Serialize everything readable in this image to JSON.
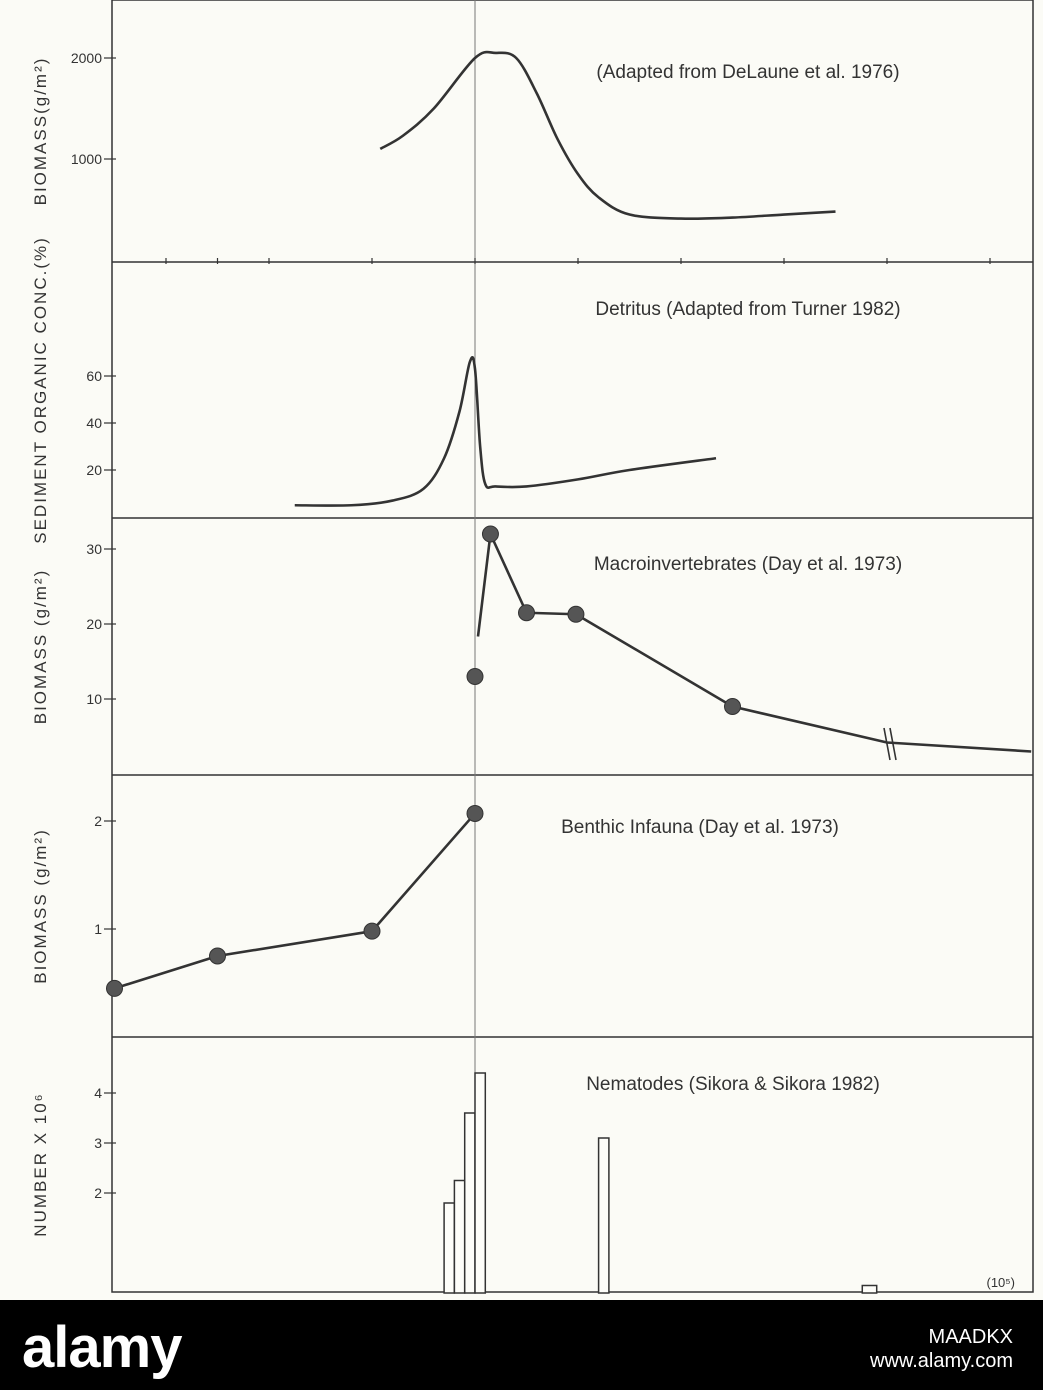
{
  "chart_data": [
    {
      "type": "line",
      "title": "(Adapted from DeLaune et al. 1976)",
      "ylabel": "BIOMASS(g/m²)",
      "yticks": [
        "2000",
        "1000"
      ],
      "ylim": [
        0,
        2500
      ],
      "series": [
        {
          "x": [
            -9.2,
            -7,
            -4,
            0,
            2,
            4,
            6,
            8,
            10,
            12,
            15,
            20,
            25,
            30,
            35
          ],
          "values": [
            1100,
            1230,
            1500,
            2000,
            2050,
            2000,
            1650,
            1200,
            850,
            620,
            450,
            410,
            420,
            450,
            480
          ]
        }
      ]
    },
    {
      "type": "line",
      "title": "Detritus (Adapted from Turner 1982)",
      "ylabel": "SEDIMENT ORGANIC CONC.(%)",
      "yticks": [
        "60",
        "40",
        "20"
      ],
      "ylim": [
        0,
        82
      ],
      "series": [
        {
          "x": [
            -17.5,
            -12,
            -8,
            -5,
            -3,
            -1.5,
            -0.5,
            0,
            0.5,
            1,
            2,
            5,
            10,
            15,
            23.4
          ],
          "values": [
            5,
            5,
            7,
            12,
            25,
            45,
            66,
            63,
            30,
            14,
            13,
            13,
            16,
            20,
            25
          ]
        }
      ]
    },
    {
      "type": "line",
      "title": "Macroinvertebrates (Day et al. 1973)",
      "ylabel": "BIOMASS (g/m²)",
      "yticks": [
        "30",
        "20",
        "10"
      ],
      "ylim": [
        0,
        33
      ],
      "series": [
        {
          "x": [
            0,
            1.5,
            5,
            9.8,
            25,
            40,
            54
          ],
          "values": [
            13,
            32,
            21.5,
            21.3,
            9,
            4.2,
            3
          ],
          "markers": [
            true,
            true,
            true,
            true,
            true,
            false,
            false
          ]
        }
      ]
    },
    {
      "type": "line",
      "title": "Benthic Infauna (Day et al. 1973)",
      "ylabel": "BIOMASS (g/m²)",
      "yticks": [
        "2",
        "1"
      ],
      "ylim": [
        0,
        2.5
      ],
      "series": [
        {
          "x": [
            -35,
            -25,
            -10,
            0
          ],
          "values": [
            0.45,
            0.75,
            0.98,
            2.07
          ]
        }
      ]
    },
    {
      "type": "bar",
      "title": "Nematodes (Sikora & Sikora 1982)",
      "ylabel": "NUMBER X 10⁶",
      "yticks": [
        "4",
        "3",
        "2"
      ],
      "ylim": [
        0,
        5
      ],
      "unit_label": "(10⁵)",
      "bars": [
        {
          "x": [
            -3,
            -2
          ],
          "value": 1.8
        },
        {
          "x": [
            -2,
            -1
          ],
          "value": 2.25
        },
        {
          "x": [
            -1,
            0
          ],
          "value": 3.6
        },
        {
          "x": [
            0,
            1
          ],
          "value": 4.4
        },
        {
          "x": [
            12,
            13
          ],
          "value": 3.1
        },
        {
          "x": [
            37.6,
            39
          ],
          "value": 0.15
        }
      ]
    }
  ],
  "footer": {
    "logo_text": "alamy",
    "image_id": "MAADKX",
    "url": "www.alamy.com"
  },
  "colors": {
    "ink": "#333333",
    "background": "#fbfbf6",
    "footer": "#000000",
    "marker": "#555555"
  }
}
